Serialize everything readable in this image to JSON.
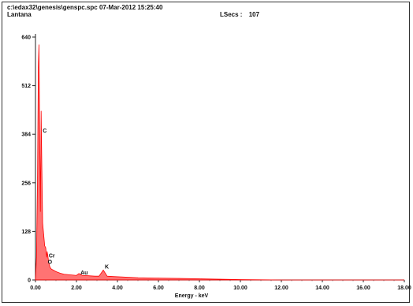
{
  "header": {
    "file_line": "c:\\edax32\\genesis\\genspc.spc  07-Mar-2012 15:25:40",
    "sample_name": "Lantana",
    "lsecs_label": "LSecs :",
    "lsecs_value": "107"
  },
  "chart_data": {
    "type": "line",
    "xlabel": "Energy - keV",
    "ylabel": "",
    "xlim": [
      0,
      18
    ],
    "ylim": [
      0,
      640
    ],
    "x_tick_labels": [
      "0.00",
      "2.00",
      "4.00",
      "6.00",
      "8.00",
      "10.00",
      "12.00",
      "14.00",
      "16.00",
      "18.00"
    ],
    "y_ticks": [
      0,
      128,
      256,
      384,
      512,
      640
    ],
    "y_tick_labels": [
      "0",
      "128",
      "256",
      "384",
      "512",
      "640"
    ],
    "line_color": "#ff0000",
    "peak_labels": [
      {
        "text": "C",
        "x": 0.277,
        "y": 384
      },
      {
        "text": "Cr",
        "x": 0.57,
        "y": 55
      },
      {
        "text": "O",
        "x": 0.525,
        "y": 38
      },
      {
        "text": "Au",
        "x": 2.12,
        "y": 10
      },
      {
        "text": "K",
        "x": 3.31,
        "y": 26
      }
    ],
    "series": [
      {
        "points": [
          [
            0.0,
            0
          ],
          [
            0.05,
            60
          ],
          [
            0.1,
            270
          ],
          [
            0.14,
            560
          ],
          [
            0.17,
            620
          ],
          [
            0.2,
            430
          ],
          [
            0.24,
            180
          ],
          [
            0.277,
            445
          ],
          [
            0.31,
            300
          ],
          [
            0.35,
            150
          ],
          [
            0.4,
            120
          ],
          [
            0.45,
            90
          ],
          [
            0.5,
            85
          ],
          [
            0.525,
            70
          ],
          [
            0.55,
            60
          ],
          [
            0.57,
            75
          ],
          [
            0.6,
            65
          ],
          [
            0.65,
            45
          ],
          [
            0.7,
            35
          ],
          [
            0.75,
            30
          ],
          [
            0.8,
            28
          ],
          [
            0.9,
            25
          ],
          [
            1.0,
            22
          ],
          [
            1.2,
            18
          ],
          [
            1.4,
            15
          ],
          [
            1.6,
            14
          ],
          [
            1.8,
            13
          ],
          [
            2.0,
            12
          ],
          [
            2.12,
            17
          ],
          [
            2.3,
            12
          ],
          [
            2.6,
            11
          ],
          [
            2.9,
            10
          ],
          [
            3.1,
            10
          ],
          [
            3.31,
            26
          ],
          [
            3.5,
            10
          ],
          [
            3.8,
            9
          ],
          [
            4.2,
            8
          ],
          [
            5.0,
            6
          ],
          [
            6.0,
            5
          ],
          [
            7.0,
            4
          ],
          [
            8.0,
            3
          ],
          [
            9.0,
            2
          ],
          [
            10.0,
            1
          ],
          [
            12.0,
            0
          ],
          [
            14.0,
            0
          ],
          [
            16.0,
            0
          ],
          [
            18.0,
            0
          ]
        ]
      }
    ]
  }
}
